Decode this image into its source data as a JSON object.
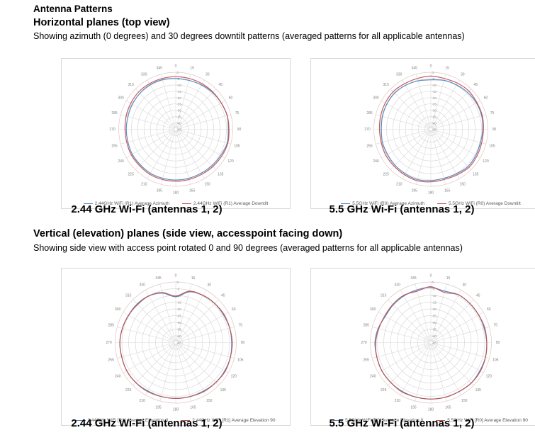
{
  "page": {
    "title": "Antenna Patterns",
    "sections": [
      {
        "heading": "Horizontal planes (top view)",
        "description": "Showing azimuth (0 degrees) and 30 degrees downtilt patterns (averaged patterns for all applicable antennas)"
      },
      {
        "heading": "Vertical (elevation) planes (side view, accesspoint facing down)",
        "description": "Showing side view with access point rotated 0 and 90 degrees (averaged patterns for all applicable antennas)"
      }
    ]
  },
  "polar_axes": {
    "angle_labels_deg": [
      "0",
      "15",
      "30",
      "45",
      "60",
      "75",
      "90",
      "105",
      "120",
      "135",
      "150",
      "165",
      "180",
      "195",
      "210",
      "225",
      "240",
      "255",
      "270",
      "285",
      "300",
      "315",
      "330",
      "345"
    ],
    "radial_labels_db": [
      "0",
      "-5",
      "-10",
      "-15",
      "-20",
      "-25",
      "-30",
      "-35",
      "-40",
      "-45"
    ],
    "radial_range_db": [
      -45,
      0
    ],
    "ring_step_db": 5,
    "grid_color": "#d9d9d9",
    "outer_ring_color": "#ddc7c7",
    "tick_label_color": "#7f7f7f"
  },
  "chart_data": [
    {
      "type": "polar",
      "caption": "2.44 GHz Wi-Fi (antennas 1, 2)",
      "angles_deg": [
        0,
        15,
        30,
        45,
        60,
        75,
        90,
        105,
        120,
        135,
        150,
        165,
        180,
        195,
        210,
        225,
        240,
        255,
        270,
        285,
        300,
        315,
        330,
        345
      ],
      "series": [
        {
          "name": "2.44GHz WiFi (R1) Average Azimuth",
          "color": "#4f81bd",
          "values_db": [
            -5,
            -5,
            -4.5,
            -4,
            -3.5,
            -3,
            -3.5,
            -3,
            -4,
            -4.5,
            -5,
            -5,
            -5,
            -5,
            -5,
            -5.5,
            -5.5,
            -6,
            -6,
            -6,
            -5.5,
            -5,
            -4.5,
            -4.5
          ]
        },
        {
          "name": "2.44GHz WiFi (R1) Average Downtilt",
          "color": "#c0504d",
          "values_db": [
            -3.5,
            -3.5,
            -3.5,
            -3.5,
            -3.5,
            -3,
            -3,
            -2.5,
            -3,
            -3.5,
            -4,
            -4,
            -4,
            -4,
            -4,
            -4.5,
            -4.5,
            -5,
            -5,
            -4.5,
            -4,
            -3.5,
            -3.5,
            -3.5
          ]
        }
      ]
    },
    {
      "type": "polar",
      "caption": "5.5 GHz Wi-Fi (antennas 1, 2)",
      "angles_deg": [
        0,
        15,
        30,
        45,
        60,
        75,
        90,
        105,
        120,
        135,
        150,
        165,
        180,
        195,
        210,
        225,
        240,
        255,
        270,
        285,
        300,
        315,
        330,
        345
      ],
      "series": [
        {
          "name": "5.5GHz WiFi (R0) Average Azimuth",
          "color": "#4f81bd",
          "values_db": [
            -6,
            -5,
            -4.5,
            -4,
            -3.5,
            -3.5,
            -4,
            -4.5,
            -4,
            -3.5,
            -4.5,
            -5,
            -4.5,
            -4,
            -4.5,
            -5,
            -5.5,
            -5.5,
            -6,
            -5.5,
            -5,
            -4.5,
            -5,
            -5.5
          ]
        },
        {
          "name": "5.5GHz WiFi (R0) Average Downtilt",
          "color": "#c0504d",
          "values_db": [
            -3,
            -3.5,
            -3,
            -2.5,
            -3,
            -3,
            -3.5,
            -3.5,
            -3,
            -2.5,
            -3.5,
            -4,
            -3.5,
            -3,
            -3.5,
            -4,
            -4,
            -4.5,
            -4.5,
            -4,
            -3.5,
            -3,
            -3.5,
            -3.5
          ]
        }
      ]
    },
    {
      "type": "polar",
      "caption": "2.44 GHz Wi-Fi (antennas 1, 2)",
      "angles_deg": [
        0,
        15,
        30,
        45,
        60,
        75,
        90,
        105,
        120,
        135,
        150,
        165,
        180,
        195,
        210,
        225,
        240,
        255,
        270,
        285,
        300,
        315,
        330,
        345
      ],
      "series": [
        {
          "name": "2.44GHz WiFi [R1] Average Elevation 0",
          "color": "#4f81bd",
          "values_db": [
            -11,
            -6,
            -4.5,
            -4,
            -4,
            -3.5,
            -3.5,
            -3,
            -3,
            -3,
            -3.5,
            -3.5,
            -3.5,
            -3.5,
            -3.5,
            -3,
            -3,
            -3.5,
            -3.5,
            -4,
            -4.5,
            -4.5,
            -5,
            -7
          ]
        },
        {
          "name": "2.44GHz WiFi [R1] Average Elevation 90",
          "color": "#c0504d",
          "values_db": [
            -10.5,
            -5.5,
            -4.5,
            -4,
            -3.5,
            -3.5,
            -3,
            -3,
            -2.5,
            -3,
            -3,
            -3.5,
            -3.5,
            -3.5,
            -3,
            -3,
            -3,
            -3.5,
            -3.5,
            -4,
            -4.5,
            -5,
            -5,
            -6.5
          ]
        }
      ]
    },
    {
      "type": "polar",
      "caption": "5.5 GHz Wi-Fi (antennas 1, 2)",
      "angles_deg": [
        0,
        15,
        30,
        45,
        60,
        75,
        90,
        105,
        120,
        135,
        150,
        165,
        180,
        195,
        210,
        225,
        240,
        255,
        270,
        285,
        300,
        315,
        330,
        345
      ],
      "series": [
        {
          "name": "5.5GHz WiFi [R0] Average Elevation 0",
          "color": "#4f81bd",
          "values_db": [
            -4,
            -5.5,
            -4,
            -4,
            -4,
            -4,
            -3.5,
            -3,
            -3,
            -2.5,
            -3,
            -3,
            -3,
            -3,
            -3,
            -3,
            -3,
            -3.5,
            -3.5,
            -4.5,
            -6,
            -5.5,
            -5,
            -4.5
          ]
        },
        {
          "name": "5.5GHz WiFi [R0] Average Elevation 90",
          "color": "#c0504d",
          "values_db": [
            -3.5,
            -6.5,
            -4,
            -4,
            -4,
            -3.5,
            -3.5,
            -3,
            -2.5,
            -2.5,
            -3,
            -3,
            -3,
            -3,
            -2.5,
            -3,
            -3,
            -3.5,
            -4,
            -5,
            -5.5,
            -5,
            -4.5,
            -5.5
          ]
        }
      ]
    }
  ]
}
